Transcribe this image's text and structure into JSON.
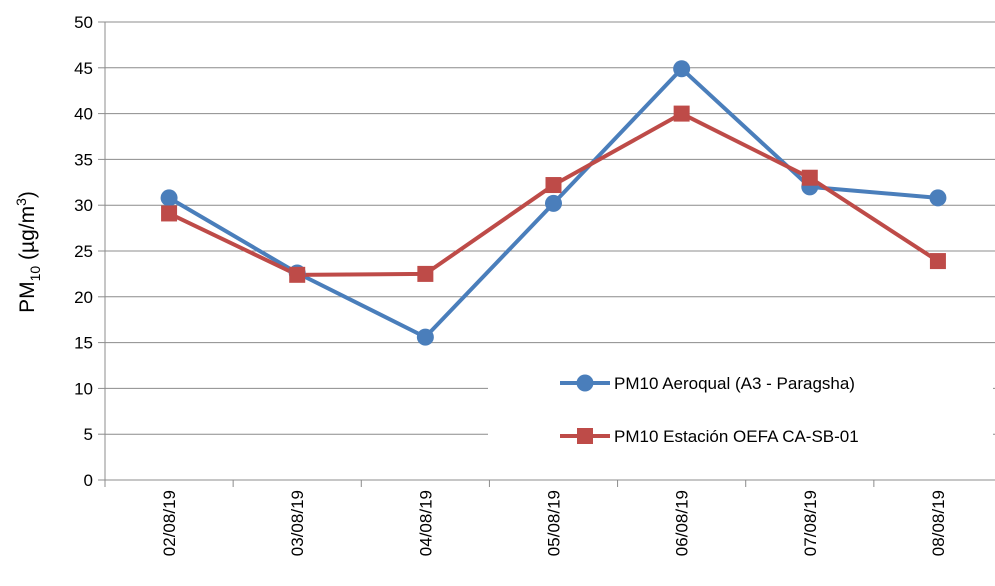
{
  "chart_data": {
    "type": "line",
    "categories": [
      "02/08/19",
      "03/08/19",
      "04/08/19",
      "05/08/19",
      "06/08/19",
      "07/08/19",
      "08/08/19"
    ],
    "series": [
      {
        "name": "PM10 Aeroqual (A3 - Paragsha)",
        "values": [
          30.8,
          22.6,
          15.6,
          30.2,
          44.9,
          32.0,
          30.8
        ],
        "color": "#4a7ebb",
        "marker": "circle"
      },
      {
        "name": "PM10 Estación OEFA CA-SB-01",
        "values": [
          29.1,
          22.4,
          22.5,
          32.2,
          40.0,
          33.0,
          23.9
        ],
        "color": "#be4b48",
        "marker": "square"
      }
    ],
    "ylabel": {
      "main": "PM",
      "sub": "10",
      "unit_open": " (µg/m",
      "sup": "3",
      "unit_close": ")"
    },
    "ylim": [
      0,
      50
    ],
    "yticks": [
      "0",
      "5",
      "10",
      "15",
      "20",
      "25",
      "30",
      "35",
      "40",
      "45",
      "50"
    ],
    "grid": true,
    "legend_position": "bottom-right inside"
  }
}
